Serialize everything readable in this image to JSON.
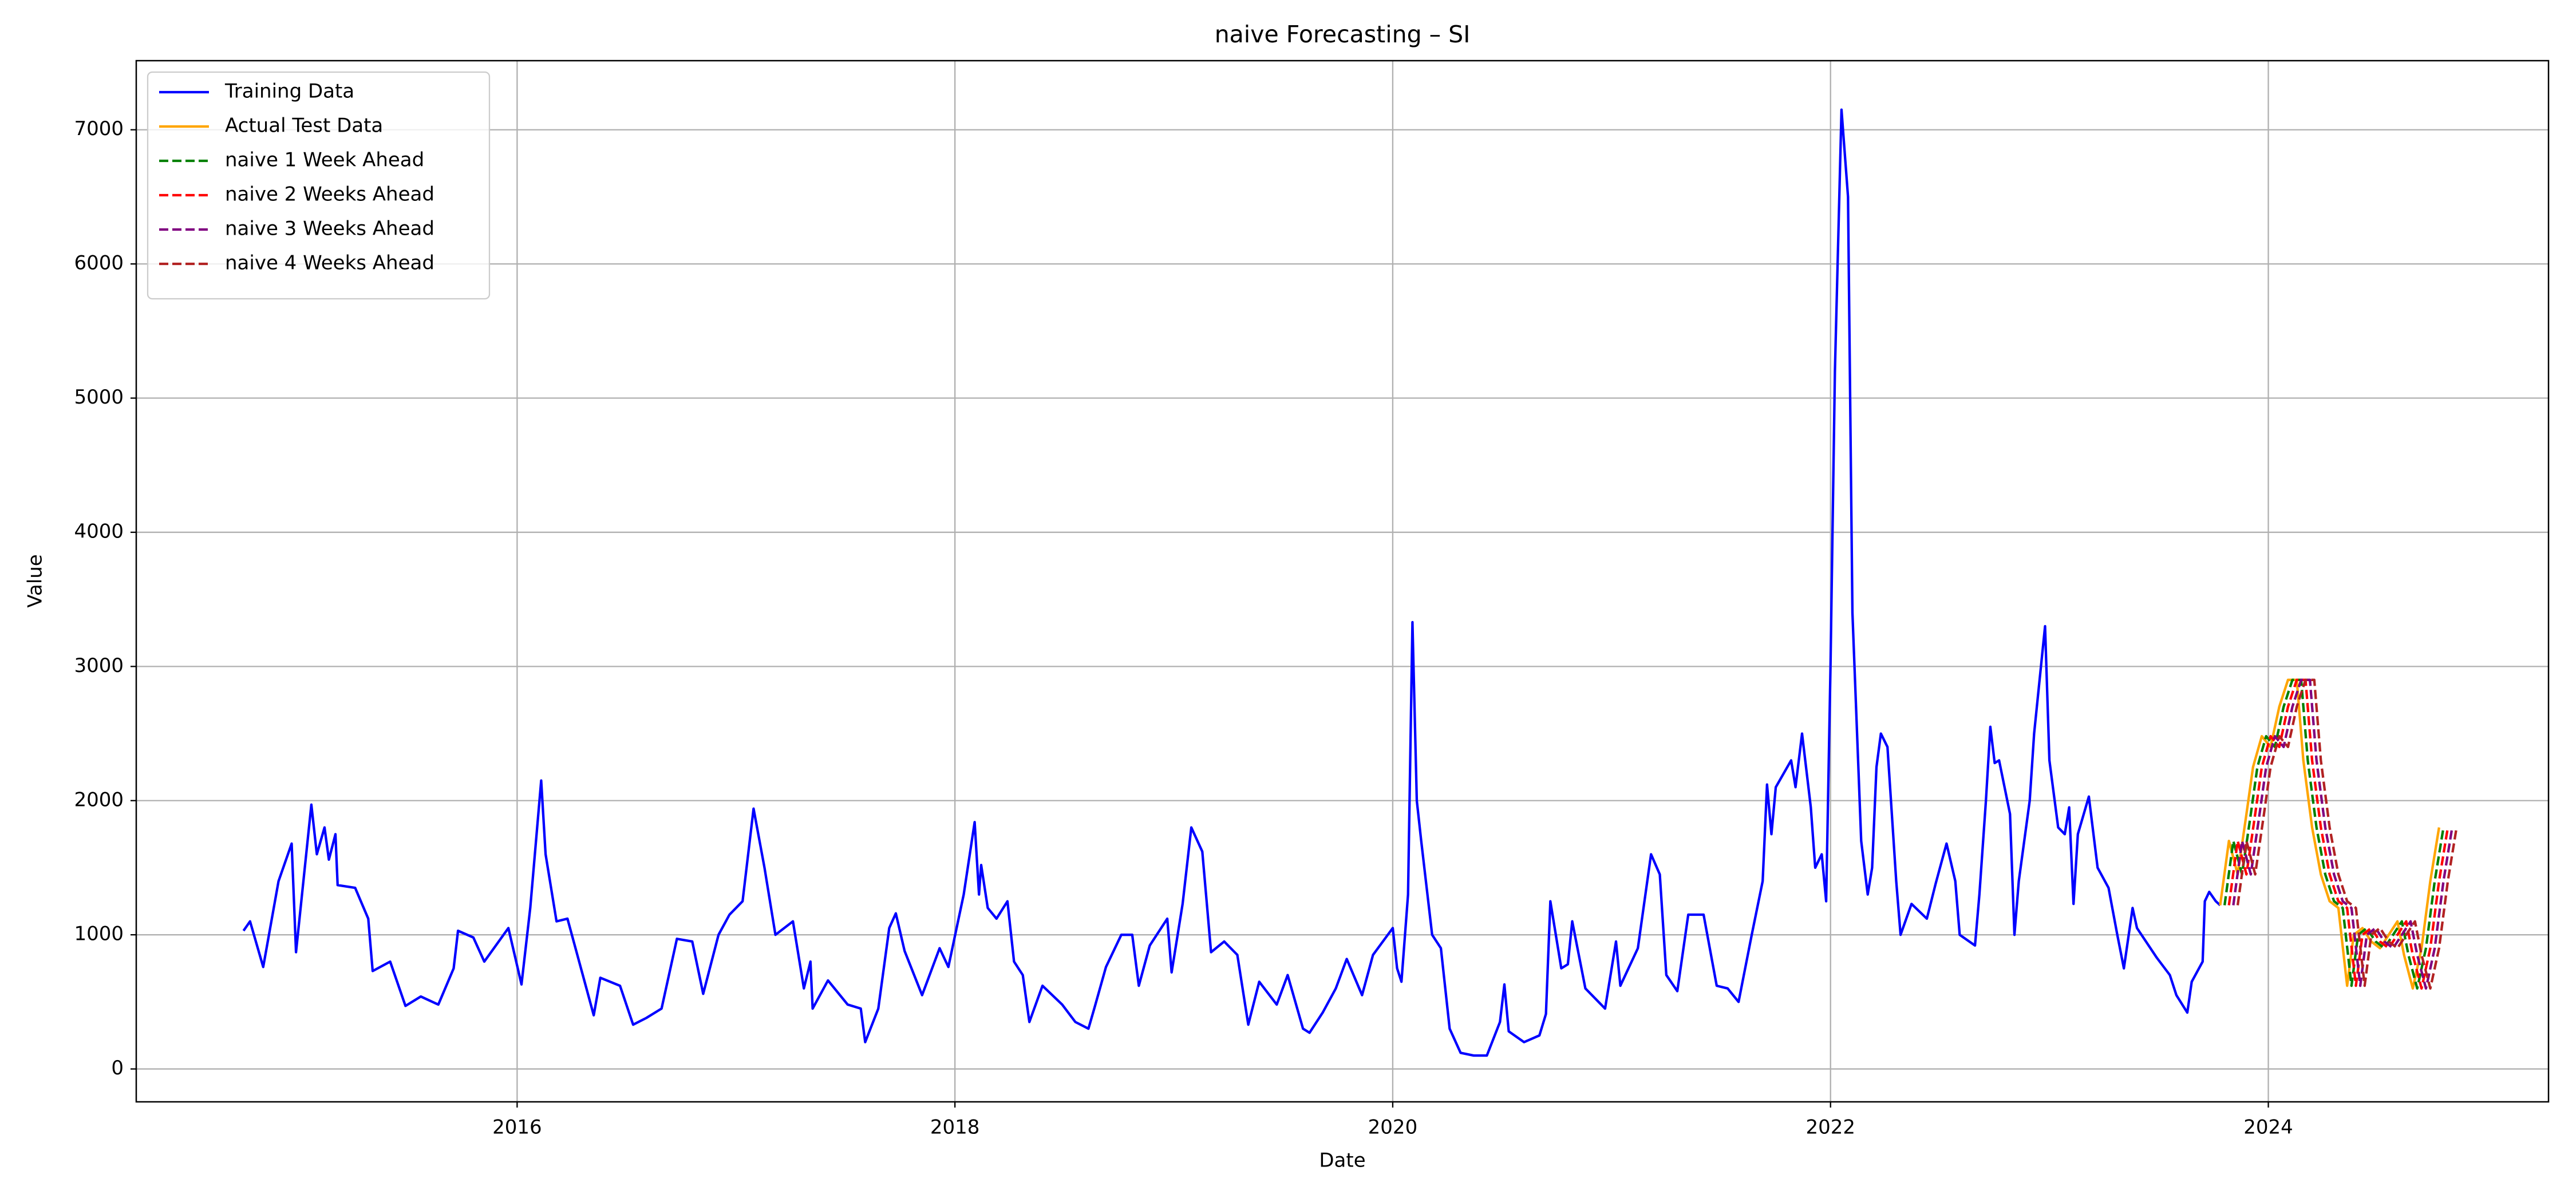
{
  "chart_data": {
    "type": "line",
    "title": "naive Forecasting – SI",
    "xlabel": "Date",
    "ylabel": "Value",
    "xlim": [
      2014.26,
      2025.28
    ],
    "xticks": [
      2016,
      2018,
      2020,
      2022,
      2024
    ],
    "ylim": [
      -245,
      7515
    ],
    "yticks": [
      0,
      1000,
      2000,
      3000,
      4000,
      5000,
      6000,
      7000
    ],
    "grid": true,
    "legend": "upper left",
    "series": [
      {
        "name": "Training Data",
        "color": "#0000ff",
        "linestyle": "solid",
        "x": [
          2014.75,
          2014.78,
          2014.84,
          2014.91,
          2014.97,
          2014.99,
          2015.06,
          2015.085,
          2015.12,
          2015.14,
          2015.17,
          2015.18,
          2015.26,
          2015.32,
          2015.34,
          2015.42,
          2015.49,
          2015.56,
          2015.64,
          2015.71,
          2015.73,
          2015.8,
          2015.85,
          2015.96,
          2016.02,
          2016.06,
          2016.11,
          2016.13,
          2016.18,
          2016.23,
          2016.3,
          2016.35,
          2016.38,
          2016.47,
          2016.53,
          2016.59,
          2016.66,
          2016.73,
          2016.8,
          2016.85,
          2016.92,
          2016.97,
          2017.03,
          2017.08,
          2017.13,
          2017.18,
          2017.26,
          2017.31,
          2017.34,
          2017.35,
          2017.42,
          2017.51,
          2017.57,
          2017.59,
          2017.65,
          2017.7,
          2017.73,
          2017.77,
          2017.85,
          2017.93,
          2017.97,
          2018.04,
          2018.09,
          2018.11,
          2018.12,
          2018.15,
          2018.19,
          2018.24,
          2018.27,
          2018.31,
          2018.34,
          2018.4,
          2018.49,
          2018.55,
          2018.61,
          2018.64,
          2018.69,
          2018.76,
          2018.81,
          2018.84,
          2018.89,
          2018.97,
          2018.99,
          2019.04,
          2019.08,
          2019.13,
          2019.17,
          2019.23,
          2019.29,
          2019.34,
          2019.39,
          2019.47,
          2019.52,
          2019.59,
          2019.62,
          2019.68,
          2019.74,
          2019.79,
          2019.86,
          2019.91,
          2020.0,
          2020.02,
          2020.04,
          2020.07,
          2020.09,
          2020.11,
          2020.13,
          2020.18,
          2020.22,
          2020.26,
          2020.31,
          2020.37,
          2020.43,
          2020.49,
          2020.51,
          2020.53,
          2020.6,
          2020.67,
          2020.7,
          2020.72,
          2020.77,
          2020.8,
          2020.82,
          2020.88,
          2020.97,
          2021.02,
          2021.04,
          2021.12,
          2021.18,
          2021.22,
          2021.25,
          2021.3,
          2021.35,
          2021.42,
          2021.48,
          2021.53,
          2021.58,
          2021.64,
          2021.69,
          2021.71,
          2021.73,
          2021.75,
          2021.82,
          2021.84,
          2021.87,
          2021.91,
          2021.93,
          2021.96,
          2021.98,
          2022.0,
          2022.02,
          2022.05,
          2022.08,
          2022.1,
          2022.14,
          2022.17,
          2022.19,
          2022.21,
          2022.23,
          2022.26,
          2022.3,
          2022.32,
          2022.37,
          2022.44,
          2022.48,
          2022.53,
          2022.57,
          2022.59,
          2022.66,
          2022.68,
          2022.71,
          2022.73,
          2022.75,
          2022.77,
          2022.82,
          2022.84,
          2022.86,
          2022.91,
          2022.93,
          2022.98,
          2023.0,
          2023.04,
          2023.07,
          2023.09,
          2023.11,
          2023.13,
          2023.18,
          2023.22,
          2023.27,
          2023.31,
          2023.34,
          2023.38,
          2023.4,
          2023.49,
          2023.55,
          2023.58,
          2023.63,
          2023.65,
          2023.7,
          2023.71,
          2023.73,
          2023.76,
          2023.78
        ],
        "values": [
          1030,
          1100,
          760,
          1400,
          1680,
          870,
          1970,
          1600,
          1800,
          1560,
          1750,
          1370,
          1350,
          1120,
          730,
          800,
          470,
          540,
          480,
          750,
          1030,
          980,
          800,
          1050,
          630,
          1200,
          2150,
          1600,
          1100,
          1120,
          700,
          400,
          680,
          620,
          330,
          380,
          450,
          970,
          950,
          560,
          1000,
          1150,
          1250,
          1940,
          1500,
          1000,
          1100,
          600,
          800,
          450,
          660,
          480,
          450,
          200,
          450,
          1050,
          1160,
          880,
          550,
          900,
          760,
          1300,
          1840,
          1300,
          1520,
          1200,
          1120,
          1250,
          800,
          700,
          350,
          620,
          480,
          350,
          300,
          470,
          760,
          1000,
          1000,
          620,
          920,
          1120,
          720,
          1230,
          1800,
          1620,
          870,
          950,
          850,
          330,
          650,
          480,
          700,
          300,
          270,
          420,
          600,
          820,
          550,
          850,
          1050,
          750,
          650,
          1300,
          3330,
          2000,
          1700,
          1000,
          900,
          300,
          120,
          100,
          100,
          350,
          630,
          280,
          200,
          250,
          410,
          1250,
          750,
          780,
          1100,
          600,
          450,
          950,
          620,
          900,
          1600,
          1450,
          700,
          580,
          1150,
          1150,
          620,
          600,
          500,
          1000,
          1400,
          2120,
          1750,
          2100,
          2300,
          2100,
          2500,
          1950,
          1500,
          1600,
          1250,
          3000,
          5200,
          7150,
          6500,
          3400,
          1700,
          1300,
          1500,
          2250,
          2500,
          2400,
          1400,
          1000,
          1230,
          1120,
          1380,
          1680,
          1400,
          1000,
          920,
          1300,
          2000,
          2550,
          2280,
          2300,
          1900,
          1000,
          1400,
          2000,
          2500,
          3300,
          2300,
          1800,
          1750,
          1950,
          1230,
          1750,
          2030,
          1500,
          1350,
          1000,
          750,
          1200,
          1050,
          830,
          700,
          550,
          420,
          650,
          800,
          1250,
          1320,
          1250,
          1220
        ]
      },
      {
        "name": "Actual Test Data",
        "color": "orange",
        "linestyle": "solid",
        "x": [
          2023.78,
          2023.82,
          2023.86,
          2023.9,
          2023.93,
          2023.97,
          2024.01,
          2024.05,
          2024.09,
          2024.13,
          2024.16,
          2024.2,
          2024.24,
          2024.28,
          2024.32,
          2024.36,
          2024.39,
          2024.43,
          2024.47,
          2024.51,
          2024.55,
          2024.59,
          2024.62,
          2024.66,
          2024.7,
          2024.74,
          2024.78
        ],
        "values": [
          1220,
          1700,
          1450,
          1900,
          2250,
          2480,
          2400,
          2700,
          2900,
          2900,
          2300,
          1800,
          1450,
          1250,
          1200,
          620,
          1000,
          1050,
          950,
          900,
          1000,
          1100,
          850,
          600,
          900,
          1400,
          1800
        ]
      },
      {
        "name": "naive 1 Week Ahead",
        "color": "green",
        "linestyle": "dashed",
        "x": [
          2023.8,
          2023.84,
          2023.88,
          2023.92,
          2023.95,
          2023.99,
          2024.03,
          2024.07,
          2024.11,
          2024.15,
          2024.18,
          2024.22,
          2024.26,
          2024.3,
          2024.34,
          2024.38,
          2024.41,
          2024.45,
          2024.49,
          2024.53,
          2024.57,
          2024.61,
          2024.64,
          2024.68,
          2024.72,
          2024.76,
          2024.8
        ],
        "values": [
          1220,
          1700,
          1450,
          1900,
          2250,
          2480,
          2400,
          2700,
          2900,
          2900,
          2300,
          1800,
          1450,
          1250,
          1200,
          620,
          1000,
          1050,
          950,
          900,
          1000,
          1100,
          850,
          600,
          900,
          1400,
          1800
        ]
      },
      {
        "name": "naive 2 Weeks Ahead",
        "color": "red",
        "linestyle": "dashed",
        "x": [
          2023.82,
          2023.86,
          2023.9,
          2023.94,
          2023.97,
          2024.01,
          2024.05,
          2024.09,
          2024.13,
          2024.17,
          2024.2,
          2024.24,
          2024.28,
          2024.32,
          2024.36,
          2024.4,
          2024.43,
          2024.47,
          2024.51,
          2024.55,
          2024.59,
          2024.63,
          2024.66,
          2024.7,
          2024.74,
          2024.78,
          2024.82
        ],
        "values": [
          1220,
          1700,
          1450,
          1900,
          2250,
          2480,
          2400,
          2700,
          2900,
          2900,
          2300,
          1800,
          1450,
          1250,
          1200,
          620,
          1000,
          1050,
          950,
          900,
          1000,
          1100,
          850,
          600,
          900,
          1400,
          1800
        ]
      },
      {
        "name": "naive 3 Weeks Ahead",
        "color": "purple",
        "linestyle": "dashed",
        "x": [
          2023.84,
          2023.88,
          2023.92,
          2023.96,
          2023.99,
          2024.03,
          2024.07,
          2024.11,
          2024.15,
          2024.19,
          2024.22,
          2024.26,
          2024.3,
          2024.34,
          2024.38,
          2024.42,
          2024.45,
          2024.49,
          2024.53,
          2024.57,
          2024.61,
          2024.65,
          2024.68,
          2024.72,
          2024.76,
          2024.8,
          2024.84
        ],
        "values": [
          1220,
          1700,
          1450,
          1900,
          2250,
          2480,
          2400,
          2700,
          2900,
          2900,
          2300,
          1800,
          1450,
          1250,
          1200,
          620,
          1000,
          1050,
          950,
          900,
          1000,
          1100,
          850,
          600,
          900,
          1400,
          1800
        ]
      },
      {
        "name": "naive 4 Weeks Ahead",
        "color": "#b22222",
        "linestyle": "dashed",
        "x": [
          2023.86,
          2023.9,
          2023.94,
          2023.98,
          2024.01,
          2024.05,
          2024.09,
          2024.13,
          2024.17,
          2024.21,
          2024.24,
          2024.28,
          2024.32,
          2024.36,
          2024.4,
          2024.44,
          2024.47,
          2024.51,
          2024.55,
          2024.59,
          2024.63,
          2024.67,
          2024.7,
          2024.74,
          2024.78,
          2024.82,
          2024.86
        ],
        "values": [
          1220,
          1700,
          1450,
          1900,
          2250,
          2480,
          2400,
          2700,
          2900,
          2900,
          2300,
          1800,
          1450,
          1250,
          1200,
          620,
          1000,
          1050,
          950,
          900,
          1000,
          1100,
          850,
          600,
          900,
          1400,
          1800
        ]
      }
    ]
  }
}
